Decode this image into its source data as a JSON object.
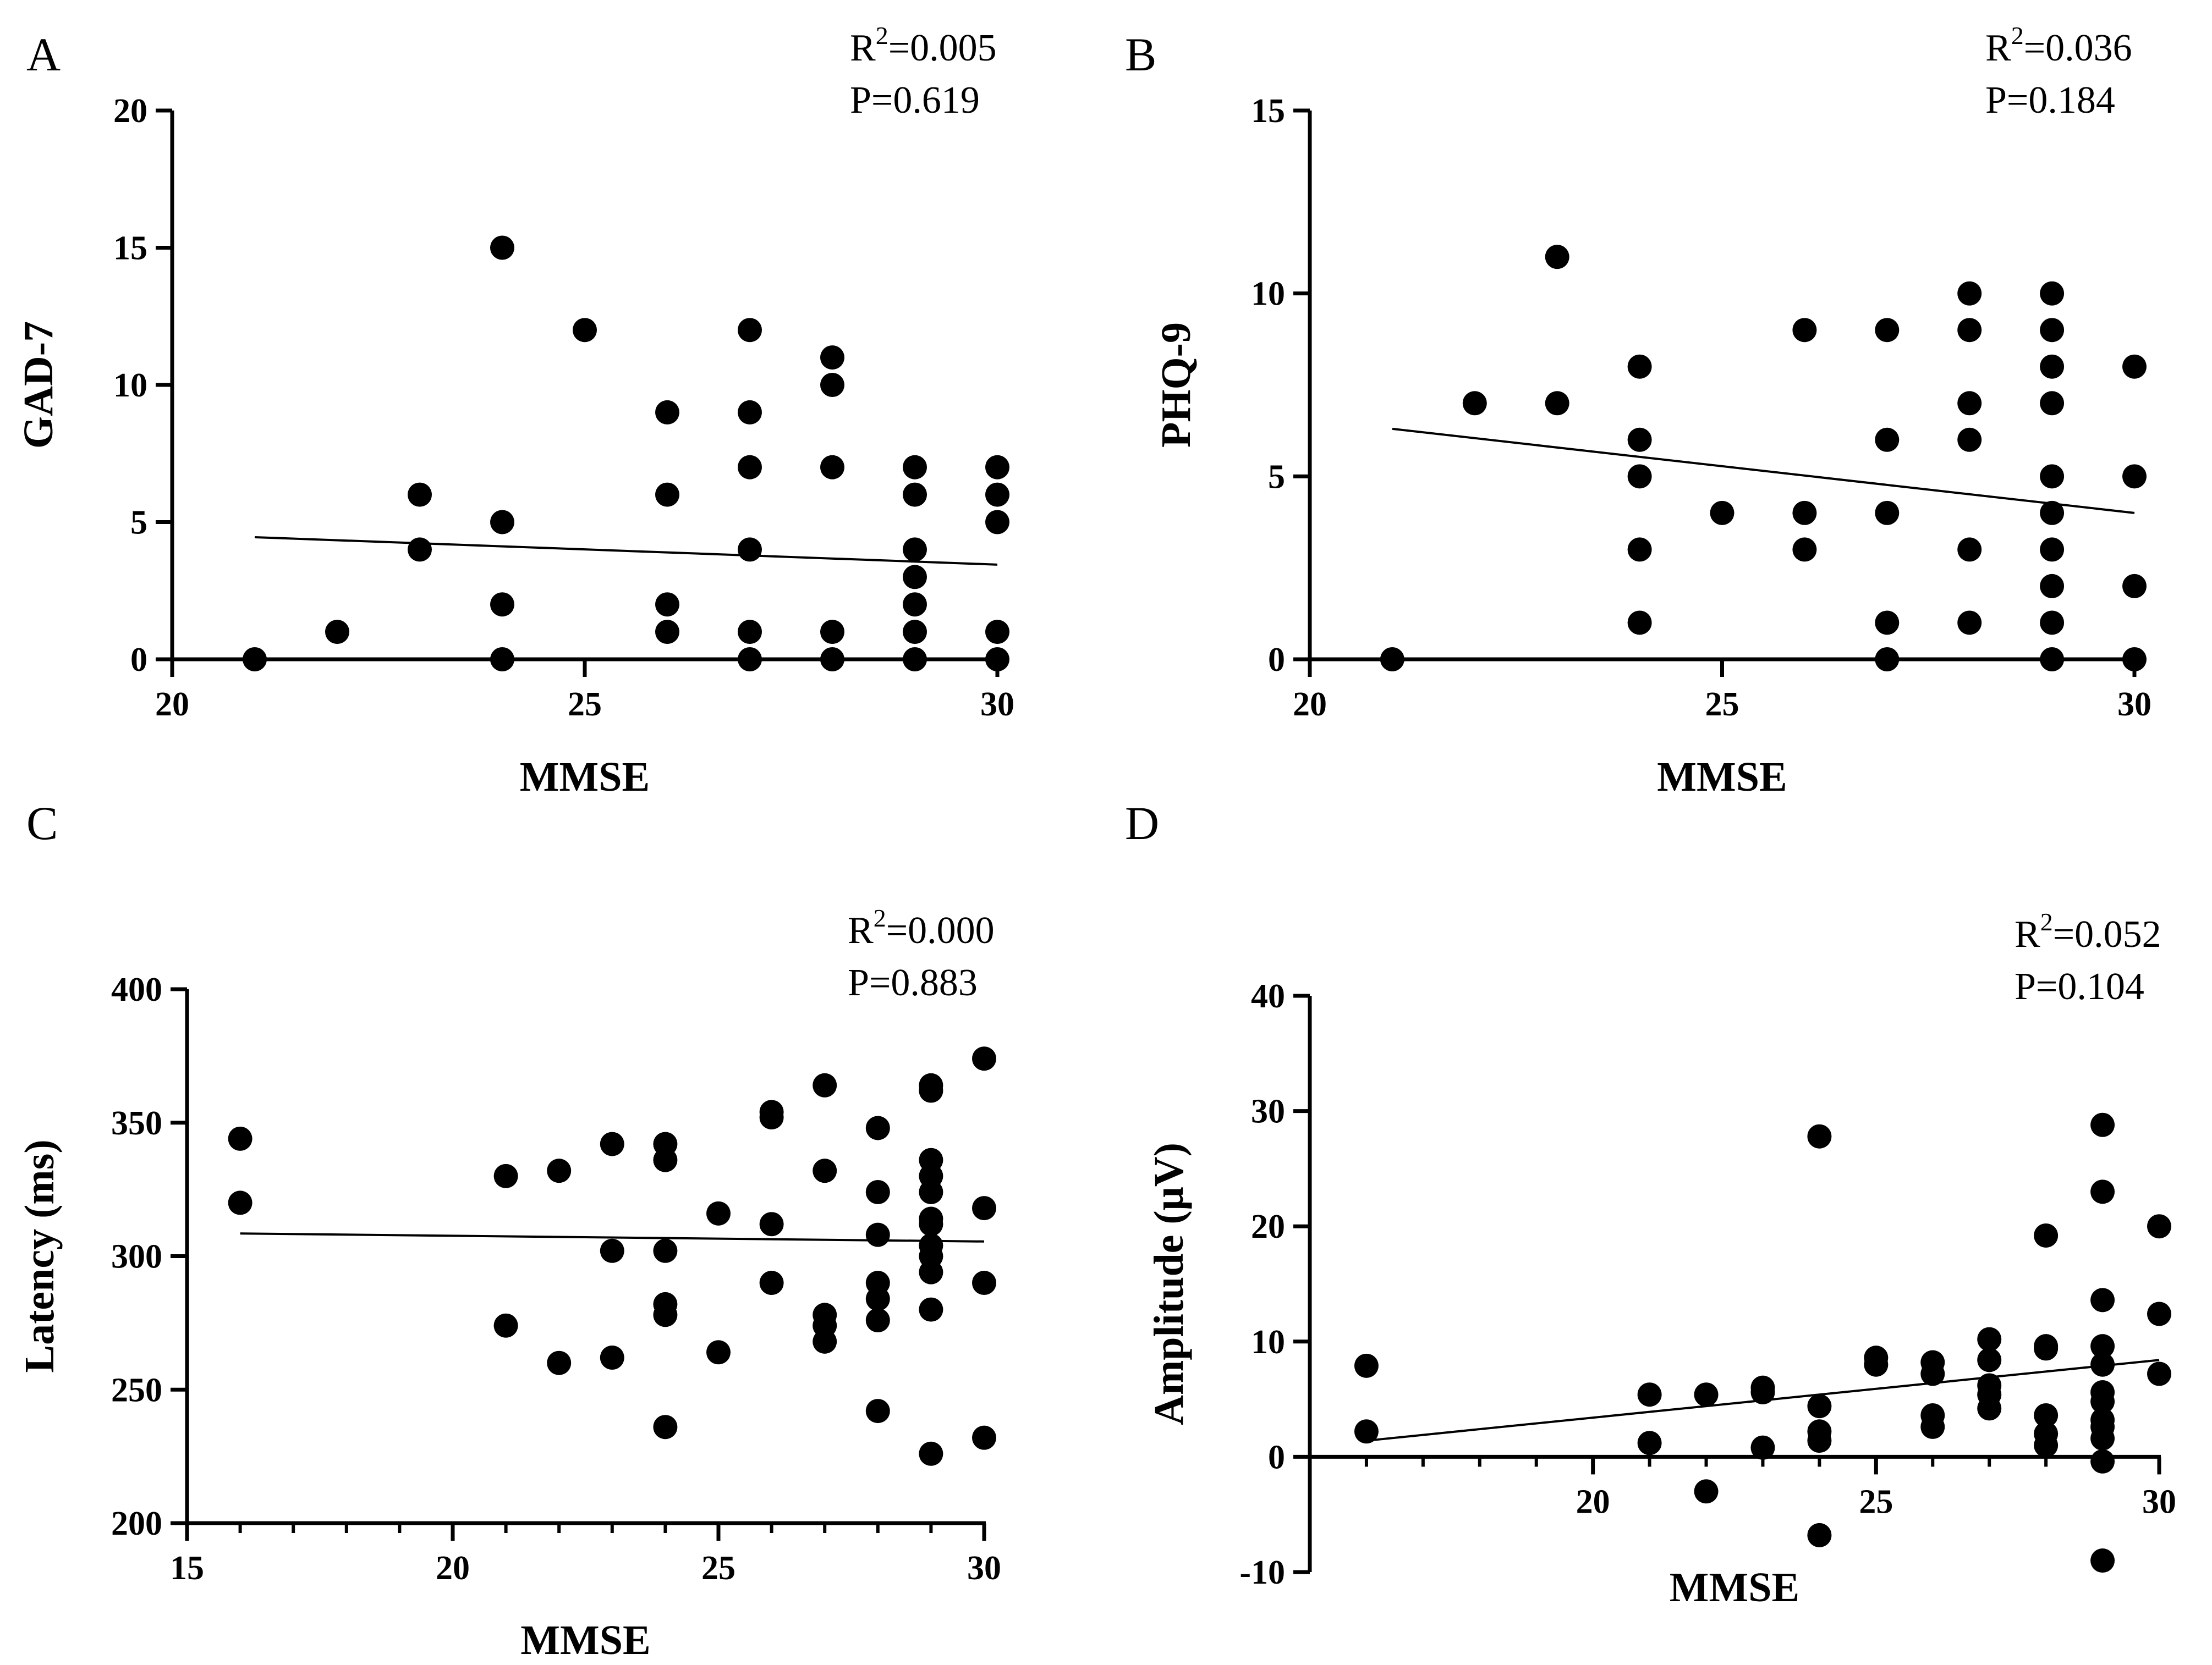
{
  "figure": {
    "background": "#ffffff",
    "ink": "#000000"
  },
  "chart_data": [
    {
      "panel": "A",
      "type": "scatter",
      "xlabel": "MMSE",
      "ylabel": "GAD-7",
      "xlim": [
        20,
        30
      ],
      "ylim": [
        0,
        20
      ],
      "xticks": [
        20,
        25,
        30
      ],
      "yticks": [
        0,
        5,
        10,
        15,
        20
      ],
      "minor_xticks": [],
      "x_axis_at_zero": false,
      "stats": {
        "r2_prefix": "R",
        "r2_sup": "2",
        "r2_value": "=0.005",
        "p_text": "P=0.619"
      },
      "trendline": {
        "x": [
          21,
          30
        ],
        "y": [
          4.45,
          3.45
        ]
      },
      "grid": false,
      "legend": "none",
      "points": [
        [
          21,
          0
        ],
        [
          22,
          1
        ],
        [
          23,
          4
        ],
        [
          23,
          6
        ],
        [
          24,
          0
        ],
        [
          24,
          2
        ],
        [
          24,
          5
        ],
        [
          24,
          15
        ],
        [
          25,
          12
        ],
        [
          26,
          1
        ],
        [
          26,
          2
        ],
        [
          26,
          6
        ],
        [
          26,
          9
        ],
        [
          27,
          0
        ],
        [
          27,
          1
        ],
        [
          27,
          4
        ],
        [
          27,
          7
        ],
        [
          27,
          9
        ],
        [
          27,
          12
        ],
        [
          28,
          0
        ],
        [
          28,
          1
        ],
        [
          28,
          7
        ],
        [
          28,
          10
        ],
        [
          28,
          11
        ],
        [
          29,
          0
        ],
        [
          29,
          1
        ],
        [
          29,
          2
        ],
        [
          29,
          3
        ],
        [
          29,
          4
        ],
        [
          29,
          6
        ],
        [
          29,
          7
        ],
        [
          30,
          0
        ],
        [
          30,
          1
        ],
        [
          30,
          5
        ],
        [
          30,
          6
        ],
        [
          30,
          7
        ]
      ]
    },
    {
      "panel": "B",
      "type": "scatter",
      "xlabel": "MMSE",
      "ylabel": "PHQ-9",
      "xlim": [
        20,
        30
      ],
      "ylim": [
        0,
        15
      ],
      "xticks": [
        20,
        25,
        30
      ],
      "yticks": [
        0,
        5,
        10,
        15
      ],
      "minor_xticks": [],
      "x_axis_at_zero": false,
      "stats": {
        "r2_prefix": "R",
        "r2_sup": "2",
        "r2_value": "=0.036",
        "p_text": "P=0.184"
      },
      "trendline": {
        "x": [
          21,
          30
        ],
        "y": [
          6.3,
          4.0
        ]
      },
      "grid": false,
      "legend": "none",
      "points": [
        [
          21,
          0
        ],
        [
          22,
          7
        ],
        [
          23,
          7
        ],
        [
          23,
          11
        ],
        [
          24,
          1
        ],
        [
          24,
          3
        ],
        [
          24,
          5
        ],
        [
          24,
          6
        ],
        [
          24,
          8
        ],
        [
          25,
          4
        ],
        [
          26,
          3
        ],
        [
          26,
          4
        ],
        [
          26,
          9
        ],
        [
          27,
          0
        ],
        [
          27,
          1
        ],
        [
          27,
          4
        ],
        [
          27,
          6
        ],
        [
          27,
          9
        ],
        [
          28,
          1
        ],
        [
          28,
          3
        ],
        [
          28,
          6
        ],
        [
          28,
          7
        ],
        [
          28,
          9
        ],
        [
          28,
          10
        ],
        [
          29,
          0
        ],
        [
          29,
          1
        ],
        [
          29,
          2
        ],
        [
          29,
          3
        ],
        [
          29,
          4
        ],
        [
          29,
          5
        ],
        [
          29,
          7
        ],
        [
          29,
          8
        ],
        [
          29,
          9
        ],
        [
          29,
          10
        ],
        [
          30,
          0
        ],
        [
          30,
          2
        ],
        [
          30,
          5
        ],
        [
          30,
          8
        ]
      ]
    },
    {
      "panel": "C",
      "type": "scatter",
      "xlabel": "MMSE",
      "ylabel": "Latency (ms)",
      "xlim": [
        15,
        30
      ],
      "ylim": [
        200,
        400
      ],
      "xticks": [
        15,
        20,
        25,
        30
      ],
      "yticks": [
        200,
        250,
        300,
        350,
        400
      ],
      "minor_xticks": [
        16,
        17,
        18,
        19,
        21,
        22,
        23,
        24,
        26,
        27,
        28,
        29
      ],
      "x_axis_at_zero": false,
      "stats": {
        "r2_prefix": "R",
        "r2_sup": "2",
        "r2_value": "=0.000",
        "p_text": "P=0.883"
      },
      "trendline": {
        "x": [
          16,
          30
        ],
        "y": [
          308.5,
          305.5
        ]
      },
      "grid": false,
      "legend": "none",
      "points": [
        [
          16,
          320
        ],
        [
          16,
          344
        ],
        [
          21,
          274
        ],
        [
          21,
          330
        ],
        [
          22,
          260
        ],
        [
          22,
          332
        ],
        [
          23,
          262
        ],
        [
          23,
          302
        ],
        [
          23,
          342
        ],
        [
          24,
          236
        ],
        [
          24,
          278
        ],
        [
          24,
          282
        ],
        [
          24,
          302
        ],
        [
          24,
          336
        ],
        [
          24,
          342
        ],
        [
          25,
          264
        ],
        [
          25,
          316
        ],
        [
          26,
          290
        ],
        [
          26,
          312
        ],
        [
          26,
          352
        ],
        [
          26,
          354
        ],
        [
          27,
          268
        ],
        [
          27,
          274
        ],
        [
          27,
          278
        ],
        [
          27,
          332
        ],
        [
          27,
          364
        ],
        [
          28,
          242
        ],
        [
          28,
          276
        ],
        [
          28,
          284
        ],
        [
          28,
          290
        ],
        [
          28,
          308
        ],
        [
          28,
          324
        ],
        [
          28,
          348
        ],
        [
          29,
          226
        ],
        [
          29,
          280
        ],
        [
          29,
          294
        ],
        [
          29,
          300
        ],
        [
          29,
          304
        ],
        [
          29,
          312
        ],
        [
          29,
          314
        ],
        [
          29,
          324
        ],
        [
          29,
          330
        ],
        [
          29,
          336
        ],
        [
          29,
          362
        ],
        [
          29,
          364
        ],
        [
          30,
          232
        ],
        [
          30,
          290
        ],
        [
          30,
          318
        ],
        [
          30,
          374
        ]
      ]
    },
    {
      "panel": "D",
      "type": "scatter",
      "xlabel": "MMSE",
      "ylabel": "Amplitude (μV)",
      "xlim": [
        15,
        30
      ],
      "ylim": [
        -10,
        40
      ],
      "xticks": [
        20,
        25,
        30
      ],
      "yticks": [
        -10,
        0,
        10,
        20,
        30,
        40
      ],
      "minor_xticks": [
        16,
        17,
        18,
        19,
        21,
        22,
        23,
        24,
        26,
        27,
        28,
        29
      ],
      "x_axis_at_zero": true,
      "stats": {
        "r2_prefix": "R",
        "r2_sup": "2",
        "r2_value": "=0.052",
        "p_text": "P=0.104"
      },
      "trendline": {
        "x": [
          16,
          30
        ],
        "y": [
          1.4,
          8.4
        ]
      },
      "grid": false,
      "legend": "none",
      "points": [
        [
          16,
          2.2
        ],
        [
          16,
          7.9
        ],
        [
          21,
          1.2
        ],
        [
          21,
          5.4
        ],
        [
          22,
          -3.0
        ],
        [
          22,
          5.4
        ],
        [
          23,
          0.8
        ],
        [
          23,
          5.6
        ],
        [
          23,
          6.0
        ],
        [
          24,
          -6.8
        ],
        [
          24,
          1.4
        ],
        [
          24,
          2.2
        ],
        [
          24,
          4.4
        ],
        [
          24,
          27.8
        ],
        [
          25,
          8.0
        ],
        [
          25,
          8.6
        ],
        [
          26,
          2.6
        ],
        [
          26,
          3.6
        ],
        [
          26,
          7.2
        ],
        [
          26,
          8.2
        ],
        [
          27,
          4.2
        ],
        [
          27,
          5.4
        ],
        [
          27,
          6.2
        ],
        [
          27,
          8.4
        ],
        [
          27,
          10.2
        ],
        [
          28,
          1.0
        ],
        [
          28,
          2.0
        ],
        [
          28,
          3.6
        ],
        [
          28,
          9.4
        ],
        [
          28,
          9.6
        ],
        [
          28,
          19.2
        ],
        [
          29,
          -9.0
        ],
        [
          29,
          -0.4
        ],
        [
          29,
          1.6
        ],
        [
          29,
          2.6
        ],
        [
          29,
          3.2
        ],
        [
          29,
          4.8
        ],
        [
          29,
          5.6
        ],
        [
          29,
          8.0
        ],
        [
          29,
          9.6
        ],
        [
          29,
          13.6
        ],
        [
          29,
          23.0
        ],
        [
          29,
          28.8
        ],
        [
          30,
          7.2
        ],
        [
          30,
          12.4
        ],
        [
          30,
          20.0
        ]
      ]
    }
  ]
}
